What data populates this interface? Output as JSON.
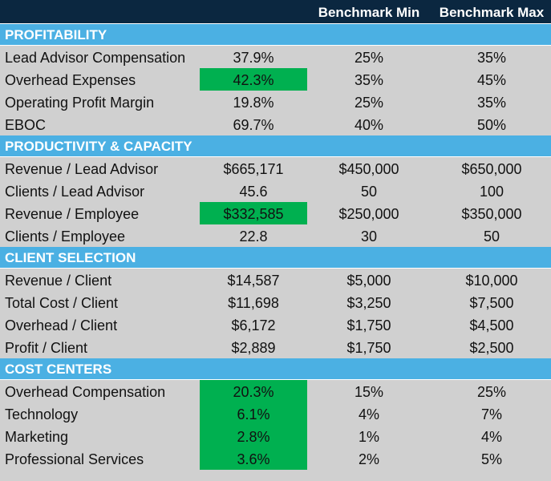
{
  "header": {
    "col_min": "Benchmark Min",
    "col_max": "Benchmark Max"
  },
  "highlight_color": "#00b050",
  "section_color": "#4bb0e3",
  "header_color": "#0b2740",
  "sections": [
    {
      "title": "PROFITABILITY",
      "rows": [
        {
          "label": "Lead Advisor Compensation",
          "value": "37.9%",
          "min": "25%",
          "max": "35%",
          "highlight": false
        },
        {
          "label": "Overhead Expenses",
          "value": "42.3%",
          "min": "35%",
          "max": "45%",
          "highlight": true
        },
        {
          "label": "Operating Profit Margin",
          "value": "19.8%",
          "min": "25%",
          "max": "35%",
          "highlight": false
        },
        {
          "label": "EBOC",
          "value": "69.7%",
          "min": "40%",
          "max": "50%",
          "highlight": false
        }
      ]
    },
    {
      "title": "PRODUCTIVITY & CAPACITY",
      "rows": [
        {
          "label": "Revenue / Lead Advisor",
          "value": "$665,171",
          "min": "$450,000",
          "max": "$650,000",
          "highlight": false
        },
        {
          "label": "Clients / Lead Advisor",
          "value": "45.6",
          "min": "50",
          "max": "100",
          "highlight": false
        },
        {
          "label": "Revenue / Employee",
          "value": "$332,585",
          "min": "$250,000",
          "max": "$350,000",
          "highlight": true
        },
        {
          "label": "Clients / Employee",
          "value": "22.8",
          "min": "30",
          "max": "50",
          "highlight": false
        }
      ]
    },
    {
      "title": "CLIENT SELECTION",
      "rows": [
        {
          "label": "Revenue / Client",
          "value": "$14,587",
          "min": "$5,000",
          "max": "$10,000",
          "highlight": false
        },
        {
          "label": "Total Cost / Client",
          "value": "$11,698",
          "min": "$3,250",
          "max": "$7,500",
          "highlight": false
        },
        {
          "label": "Overhead / Client",
          "value": "$6,172",
          "min": "$1,750",
          "max": "$4,500",
          "highlight": false
        },
        {
          "label": "Profit / Client",
          "value": "$2,889",
          "min": "$1,750",
          "max": "$2,500",
          "highlight": false
        }
      ]
    },
    {
      "title": "COST CENTERS",
      "rows": [
        {
          "label": "Overhead Compensation",
          "value": "20.3%",
          "min": "15%",
          "max": "25%",
          "highlight": true
        },
        {
          "label": "Technology",
          "value": "6.1%",
          "min": "4%",
          "max": "7%",
          "highlight": true
        },
        {
          "label": "Marketing",
          "value": "2.8%",
          "min": "1%",
          "max": "4%",
          "highlight": true
        },
        {
          "label": "Professional Services",
          "value": "3.6%",
          "min": "2%",
          "max": "5%",
          "highlight": true
        }
      ]
    }
  ]
}
